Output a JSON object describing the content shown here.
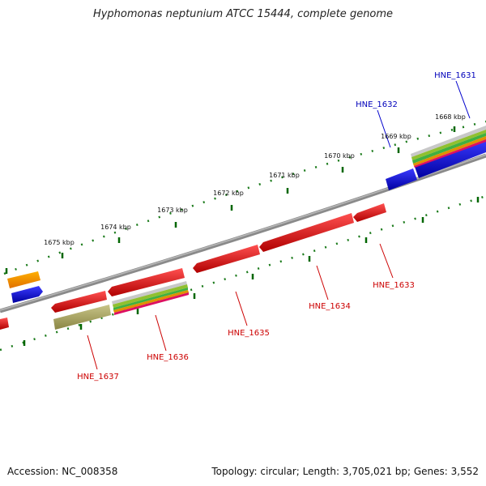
{
  "header": {
    "title": "Hyphomonas neptunium ATCC 15444, complete genome"
  },
  "footer": {
    "accession": "Accession: NC_008358",
    "topology": "Topology: circular; Length: 3,705,021 bp; Genes: 3,552"
  },
  "scale_labels": [
    "1668 kbp",
    "1669 kbp",
    "1670 kbp",
    "1671 kbp",
    "1672 kbp",
    "1673 kbp",
    "1674 kbp",
    "1675 kbp"
  ],
  "gene_labels": [
    "HNE_1631",
    "HNE_1632",
    "HNE_1633",
    "HNE_1634",
    "HNE_1635",
    "HNE_1636",
    "HNE_1637"
  ],
  "colors": {
    "cds_red": "#e00000",
    "cds_blue": "#0000dd",
    "label_red": "#cc0000",
    "label_blue": "#0000bb",
    "tick_green": "#006600",
    "backbone_grey": "#888888",
    "olive": "#9e9a55",
    "orange": "#f08c00"
  }
}
